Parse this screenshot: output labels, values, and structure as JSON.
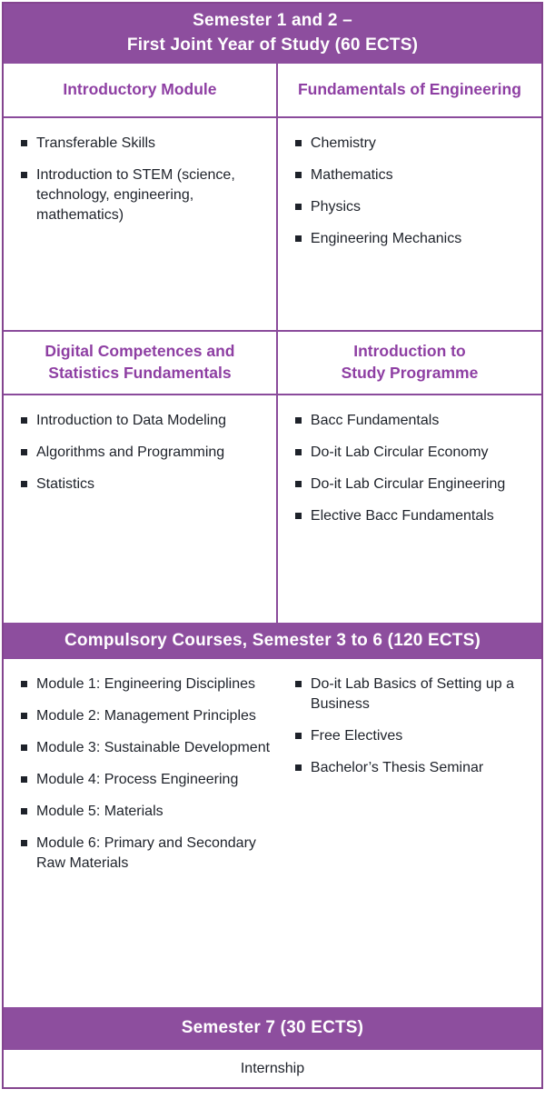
{
  "colors": {
    "band_purple": "#8d4e9e",
    "border_purple": "#8a4b9b",
    "heading_purple": "#8e3fa3",
    "text_dark": "#1e222a"
  },
  "title_band": {
    "text": "Semester 1 and 2 –\nFirst Joint Year of Study (60 ECTS)"
  },
  "row1": {
    "left": {
      "header": "Introductory Module",
      "items": [
        "Transferable Skills",
        "Introduction to STEM (science, technology, engineering, mathematics)"
      ]
    },
    "right": {
      "header": "Fundamentals of Engineering",
      "items": [
        "Chemistry",
        "Mathematics",
        "Physics",
        "Engineering Mechanics"
      ]
    }
  },
  "row2": {
    "left": {
      "header": "Digital Competences and\nStatistics Fundamentals",
      "items": [
        "Introduction to Data Modeling",
        "Algorithms and Programming",
        "Statistics"
      ]
    },
    "right": {
      "header": "Introduction to\nStudy Programme",
      "items": [
        "Bacc Fundamentals",
        "Do-it Lab Circular Economy",
        "Do-it Lab Circular Engineering",
        "Elective Bacc Fundamentals"
      ]
    }
  },
  "compulsory": {
    "band": "Compulsory Courses, Semester 3 to 6 (120 ECTS)",
    "left_items": [
      "Module 1: Engineering Disciplines",
      "Module 2: Management Principles",
      "Module 3: Sustainable Development",
      "Module 4: Process Engineering",
      "Module 5: Materials",
      "Module 6: Primary and Secondary Raw Materials"
    ],
    "right_items": [
      "Do-it Lab Basics of Setting up a Business",
      "Free Electives",
      "Bachelor’s Thesis Seminar"
    ]
  },
  "semester7": {
    "band": "Semester 7 (30 ECTS)",
    "content": "Internship"
  }
}
